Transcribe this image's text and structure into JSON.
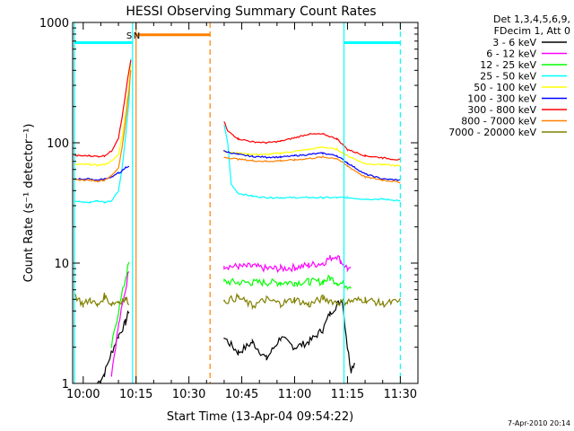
{
  "chart_data": {
    "type": "line",
    "title": "HESSI Observing Summary Count Rates",
    "xlabel": "Start Time (13-Apr-04 09:54:22)",
    "ylabel": "Count Rate (s⁻¹ detector⁻¹)",
    "ylog": true,
    "ylim": [
      1,
      1000
    ],
    "xlim_minutes": [
      -3,
      95
    ],
    "x_tick_labels": [
      "10:00",
      "10:15",
      "10:30",
      "10:45",
      "11:00",
      "11:15",
      "11:30"
    ],
    "x_tick_minutes": [
      0,
      15,
      30,
      45,
      60,
      75,
      90
    ],
    "y_tick_labels": [
      "1",
      "10",
      "100",
      "1000"
    ],
    "y_tick_values": [
      1,
      10,
      100,
      1000
    ],
    "legend_header": [
      "Det 1,3,4,5,6,9,",
      "FDecim 1, Att 0"
    ],
    "legend_position": "right",
    "footer": "7-Apr-2010 20:14",
    "markers": [
      {
        "label": "S",
        "minute": 13
      },
      {
        "label": "N",
        "minute": 15
      }
    ],
    "vertical_lines": [
      {
        "minute": -2.5,
        "color": "#00ffff",
        "style": "solid"
      },
      {
        "minute": 14,
        "color": "#00ffff",
        "style": "solid"
      },
      {
        "minute": 15,
        "color": "#ff8000",
        "style": "solid"
      },
      {
        "minute": 36,
        "color": "#ff8000",
        "style": "dashed"
      },
      {
        "minute": 74,
        "color": "#00ffff",
        "style": "solid"
      },
      {
        "minute": 90,
        "color": "#00ffff",
        "style": "dashed"
      }
    ],
    "horizontal_bars": [
      {
        "x": [
          -2.5,
          14
        ],
        "y": 680,
        "color": "#00ffff"
      },
      {
        "x": [
          15,
          36
        ],
        "y": 790,
        "color": "#ff8000"
      },
      {
        "x": [
          74,
          90
        ],
        "y": 680,
        "color": "#00ffff"
      }
    ],
    "series": [
      {
        "name": "3 - 6 keV",
        "color": "#000000",
        "x": [
          4,
          6,
          8,
          10,
          12,
          13,
          40,
          44,
          48,
          52,
          56,
          60,
          64,
          68,
          70,
          72,
          73.5,
          75,
          76,
          77
        ],
        "y": [
          1,
          1.2,
          1.8,
          2.5,
          3.2,
          4,
          2.4,
          1.8,
          2.2,
          1.6,
          2.4,
          2,
          2.2,
          2.8,
          3.8,
          4.5,
          5,
          2,
          1.3,
          1.5
        ]
      },
      {
        "name": "6 - 12 keV",
        "color": "#ff00ff",
        "x": [
          8,
          10,
          12,
          13,
          40,
          44,
          48,
          52,
          56,
          60,
          64,
          68,
          70,
          72,
          73,
          75,
          76
        ],
        "y": [
          1.2,
          3,
          6,
          9,
          9.5,
          9.3,
          9.4,
          9,
          9,
          9.2,
          9.6,
          10,
          11,
          11.5,
          10.5,
          9,
          8.6
        ]
      },
      {
        "name": "12 - 25 keV",
        "color": "#00ff00",
        "x": [
          8,
          10,
          12,
          13,
          40,
          44,
          48,
          52,
          56,
          60,
          64,
          68,
          70,
          72,
          73,
          75,
          76
        ],
        "y": [
          2,
          4,
          7.5,
          10,
          7,
          6.9,
          6.9,
          6.9,
          6.9,
          6.9,
          7,
          7,
          7.5,
          7,
          6.8,
          6.5,
          6.5
        ]
      },
      {
        "name": "25 - 50 keV",
        "color": "#00ffff",
        "x": [
          -2.5,
          0,
          2,
          4,
          6,
          8,
          10,
          11,
          12,
          13,
          13.5,
          40,
          41,
          42,
          44,
          48,
          52,
          56,
          60,
          64,
          68,
          72,
          75,
          80,
          85,
          90
        ],
        "y": [
          33,
          32,
          32,
          33,
          32,
          33,
          40,
          60,
          110,
          220,
          500,
          140,
          100,
          45,
          38,
          36,
          35,
          35,
          35,
          35,
          35,
          35,
          35,
          34,
          34,
          33
        ]
      },
      {
        "name": "50 - 100 keV",
        "color": "#ffff00",
        "x": [
          -2.5,
          2,
          4,
          6,
          8,
          10,
          11,
          12,
          13,
          13.5,
          40,
          44,
          48,
          52,
          56,
          60,
          64,
          68,
          72,
          75,
          80,
          85,
          90
        ],
        "y": [
          66,
          66,
          65,
          66,
          70,
          80,
          110,
          170,
          300,
          450,
          85,
          82,
          80,
          80,
          82,
          85,
          88,
          92,
          88,
          78,
          67,
          66,
          64
        ]
      },
      {
        "name": "100 - 300 keV",
        "color": "#0000ff",
        "x": [
          -2.5,
          2,
          4,
          6,
          8,
          10,
          11,
          12,
          13,
          40,
          44,
          48,
          52,
          56,
          60,
          64,
          68,
          72,
          75,
          80,
          85,
          90
        ],
        "y": [
          50,
          50,
          49,
          50,
          52,
          56,
          58,
          62,
          64,
          85,
          80,
          77,
          76,
          76,
          78,
          80,
          82,
          78,
          68,
          55,
          50,
          49
        ]
      },
      {
        "name": "300 - 800 keV",
        "color": "#ff0000",
        "x": [
          -2.5,
          2,
          4,
          6,
          8,
          10,
          11,
          12,
          13,
          13.5,
          40,
          41,
          44,
          48,
          52,
          56,
          60,
          64,
          68,
          72,
          75,
          80,
          85,
          90
        ],
        "y": [
          78,
          78,
          77,
          78,
          85,
          110,
          160,
          250,
          400,
          480,
          150,
          125,
          108,
          102,
          100,
          103,
          110,
          118,
          118,
          108,
          88,
          78,
          75,
          72
        ]
      },
      {
        "name": "800 - 7000 keV",
        "color": "#ff8000",
        "x": [
          -2.5,
          2,
          4,
          6,
          8,
          10,
          11,
          12,
          13,
          13.5,
          40,
          44,
          48,
          52,
          56,
          60,
          64,
          68,
          72,
          75,
          80,
          85,
          90
        ],
        "y": [
          49,
          49,
          48,
          49,
          53,
          62,
          90,
          150,
          270,
          400,
          76,
          73,
          71,
          70,
          71,
          72,
          74,
          76,
          74,
          64,
          52,
          49,
          47
        ]
      },
      {
        "name": "7000 - 20000 keV",
        "color": "#808000",
        "x": [
          -2.5,
          0,
          2,
          4,
          6,
          8,
          10,
          12,
          13,
          40,
          44,
          48,
          52,
          56,
          60,
          64,
          68,
          72,
          75,
          80,
          85,
          90
        ],
        "y": [
          5.5,
          4.5,
          5,
          4.4,
          5.3,
          4.6,
          4.8,
          5,
          4.8,
          4.8,
          5.2,
          4.4,
          5,
          4.6,
          5,
          4.5,
          5.1,
          4.7,
          4.8,
          5,
          4.6,
          4.8
        ]
      }
    ]
  }
}
